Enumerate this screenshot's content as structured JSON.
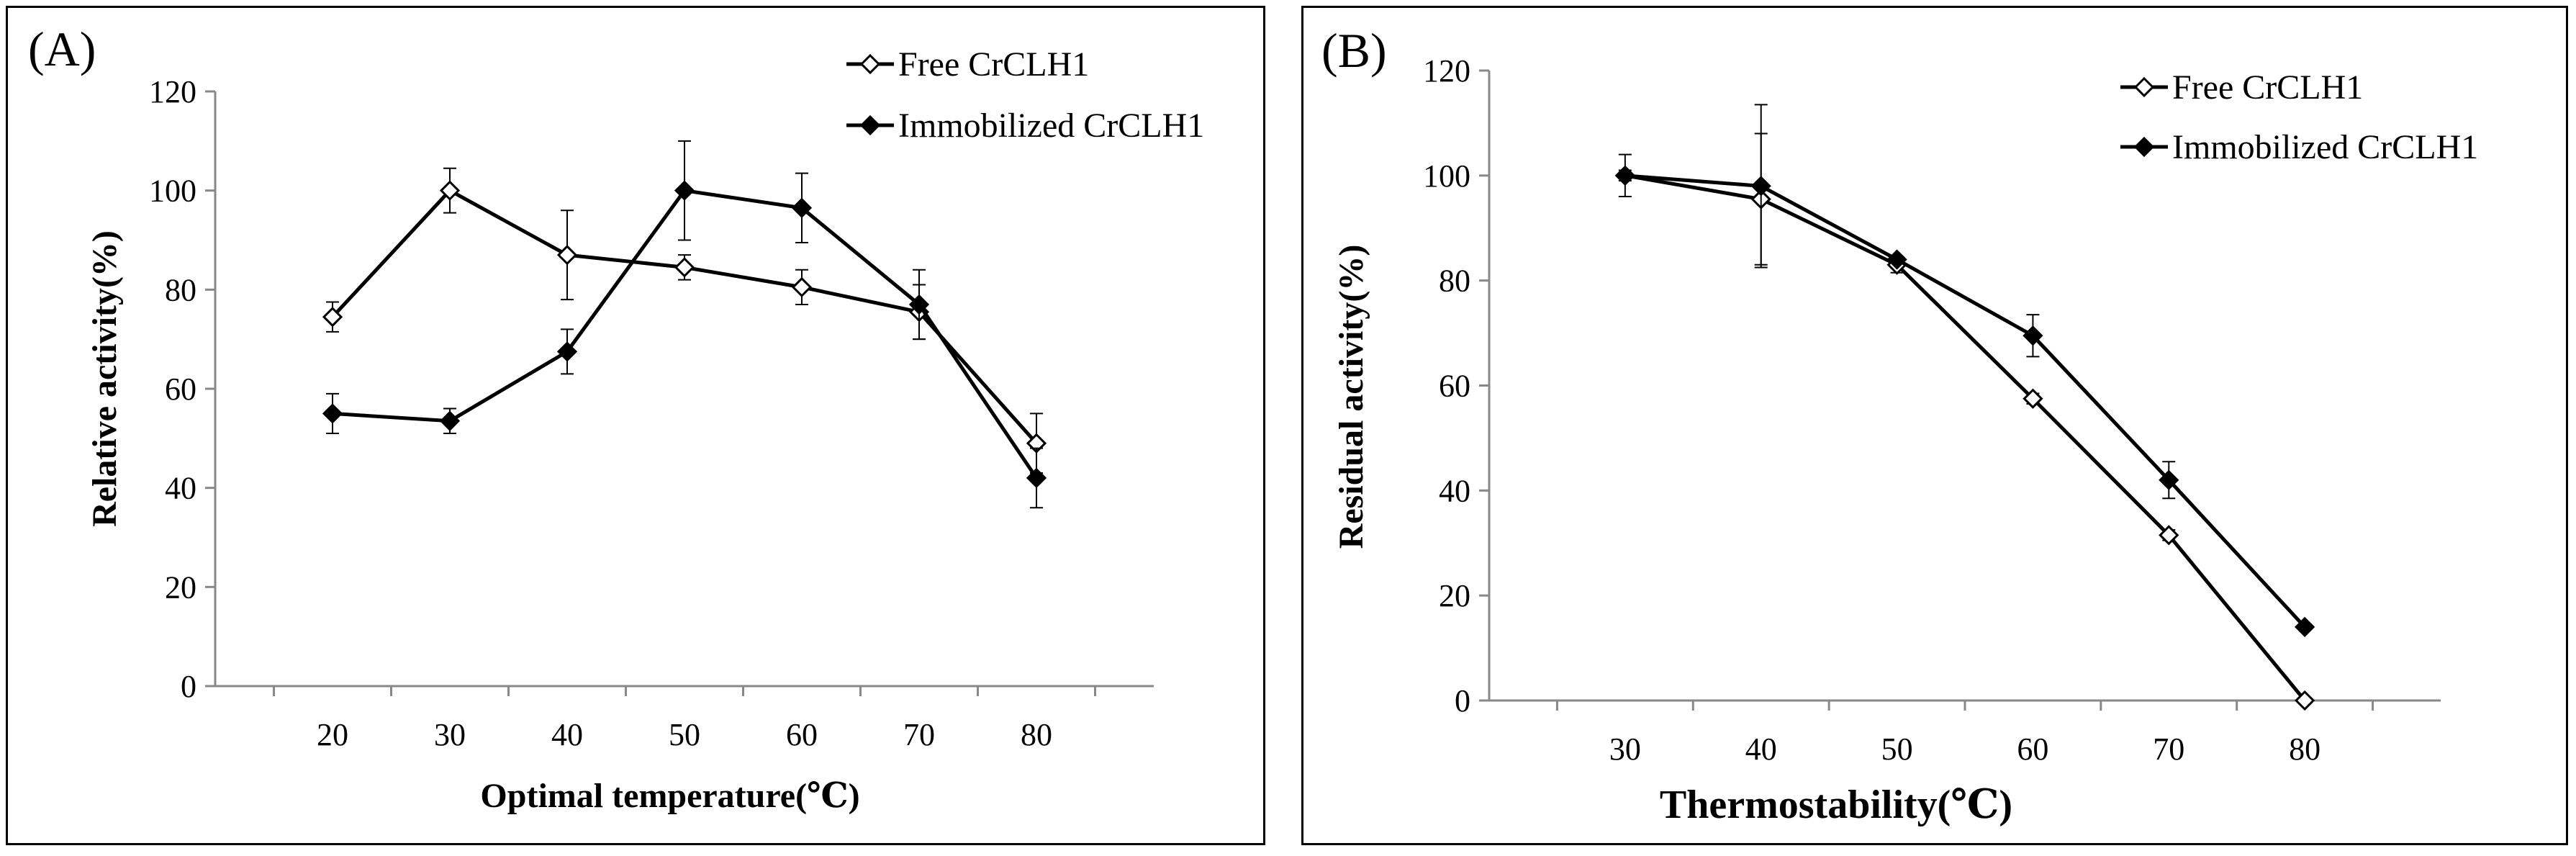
{
  "chart_data": [
    {
      "type": "line",
      "panel_label": "(A)",
      "xlabel": "Optimal temperature(℃)",
      "ylabel": "Relative activity(%)",
      "x": [
        20,
        30,
        40,
        50,
        60,
        70,
        80
      ],
      "xlim": [
        10,
        90
      ],
      "ylim": [
        0,
        120
      ],
      "yticks": [
        0,
        20,
        40,
        60,
        80,
        100,
        120
      ],
      "grid": false,
      "legend_position": "top-right",
      "series": [
        {
          "name": "Free CrCLH1",
          "marker": "open-diamond",
          "values": [
            74.5,
            100,
            87,
            84.5,
            80.5,
            75.5,
            49
          ],
          "error": [
            3,
            4.5,
            9,
            2.5,
            3.5,
            5.5,
            6
          ]
        },
        {
          "name": "Immobilized CrCLH1",
          "marker": "filled-diamond",
          "values": [
            55,
            53.5,
            67.5,
            100,
            96.5,
            77,
            42
          ],
          "error": [
            4,
            2.5,
            4.5,
            10,
            7,
            7,
            6
          ]
        }
      ]
    },
    {
      "type": "line",
      "panel_label": "(B)",
      "xlabel": "Thermostability(℃)",
      "ylabel": "Residual activity(%)",
      "x": [
        30,
        40,
        50,
        60,
        70,
        80
      ],
      "xlim": [
        20,
        90
      ],
      "ylim": [
        0,
        120
      ],
      "yticks": [
        0,
        20,
        40,
        60,
        80,
        100,
        120
      ],
      "grid": false,
      "legend_position": "top-right",
      "series": [
        {
          "name": "Free CrCLH1",
          "marker": "open-diamond",
          "values": [
            100,
            95.5,
            83,
            57.5,
            31.5,
            0
          ],
          "error": [
            4,
            12.5,
            1.5,
            1,
            1,
            0
          ]
        },
        {
          "name": "Immobilized CrCLH1",
          "marker": "filled-diamond",
          "values": [
            100,
            98,
            84,
            69.5,
            42,
            14
          ],
          "error": [
            1,
            15.5,
            0.5,
            4,
            3.5,
            0.5
          ]
        }
      ]
    }
  ]
}
